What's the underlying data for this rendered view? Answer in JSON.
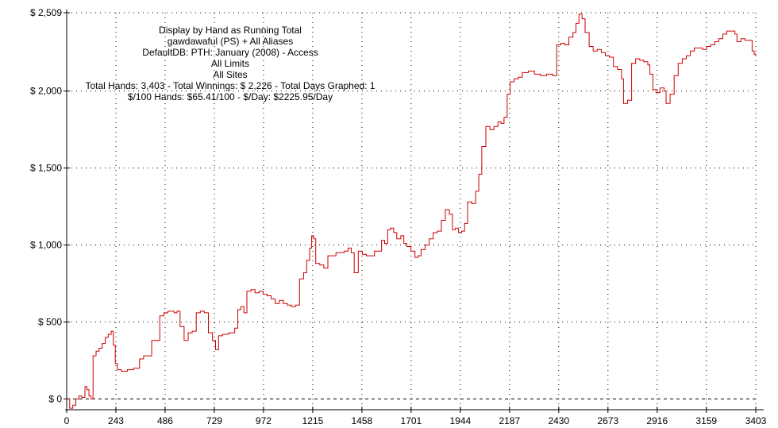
{
  "chart_data": {
    "type": "line",
    "info_lines": [
      "Display by Hand as Running Total",
      "gawdawaful (PS) + All Aliases",
      "DefaultDB: PTH: January (2008) - Access",
      "All Limits",
      "All Sites",
      "Total Hands: 3,403 - Total Winnings: $ 2,226 - Total Days Graphed: 1",
      "$/100 Hands: $65.41/100 - $/Day: $2225.95/Day"
    ],
    "x_ticks": [
      0,
      243,
      486,
      729,
      972,
      1215,
      1458,
      1701,
      1944,
      2187,
      2430,
      2673,
      2916,
      3159,
      3403
    ],
    "y_ticks": [
      {
        "value": 0,
        "label": "$ 0"
      },
      {
        "value": 500,
        "label": "$ 500"
      },
      {
        "value": 1000,
        "label": "$ 1,000"
      },
      {
        "value": 1500,
        "label": "$ 1,500"
      },
      {
        "value": 2000,
        "label": "$ 2,000"
      },
      {
        "value": 2509,
        "label": "$ 2,509"
      }
    ],
    "xlim": [
      0,
      3403
    ],
    "ylim": [
      -70,
      2509
    ],
    "grid": true,
    "line_color": "#cc0000",
    "series": [
      {
        "points": [
          [
            0,
            0
          ],
          [
            15,
            -60
          ],
          [
            30,
            -40
          ],
          [
            45,
            0
          ],
          [
            60,
            20
          ],
          [
            75,
            10
          ],
          [
            90,
            80
          ],
          [
            100,
            60
          ],
          [
            110,
            20
          ],
          [
            120,
            0
          ],
          [
            130,
            280
          ],
          [
            145,
            310
          ],
          [
            160,
            330
          ],
          [
            175,
            360
          ],
          [
            190,
            400
          ],
          [
            205,
            420
          ],
          [
            220,
            440
          ],
          [
            230,
            350
          ],
          [
            240,
            230
          ],
          [
            250,
            190
          ],
          [
            270,
            180
          ],
          [
            300,
            190
          ],
          [
            330,
            200
          ],
          [
            360,
            260
          ],
          [
            380,
            280
          ],
          [
            400,
            280
          ],
          [
            420,
            380
          ],
          [
            440,
            380
          ],
          [
            460,
            540
          ],
          [
            480,
            560
          ],
          [
            500,
            570
          ],
          [
            530,
            560
          ],
          [
            545,
            570
          ],
          [
            560,
            470
          ],
          [
            580,
            380
          ],
          [
            600,
            430
          ],
          [
            620,
            440
          ],
          [
            640,
            560
          ],
          [
            660,
            570
          ],
          [
            680,
            560
          ],
          [
            700,
            430
          ],
          [
            720,
            380
          ],
          [
            735,
            320
          ],
          [
            750,
            410
          ],
          [
            770,
            420
          ],
          [
            800,
            430
          ],
          [
            830,
            460
          ],
          [
            845,
            580
          ],
          [
            860,
            600
          ],
          [
            875,
            560
          ],
          [
            890,
            700
          ],
          [
            910,
            710
          ],
          [
            930,
            690
          ],
          [
            950,
            700
          ],
          [
            970,
            680
          ],
          [
            990,
            670
          ],
          [
            1010,
            650
          ],
          [
            1030,
            620
          ],
          [
            1050,
            640
          ],
          [
            1070,
            620
          ],
          [
            1090,
            610
          ],
          [
            1110,
            600
          ],
          [
            1130,
            610
          ],
          [
            1150,
            780
          ],
          [
            1170,
            820
          ],
          [
            1185,
            900
          ],
          [
            1200,
            980
          ],
          [
            1210,
            1060
          ],
          [
            1220,
            1040
          ],
          [
            1230,
            880
          ],
          [
            1250,
            870
          ],
          [
            1270,
            850
          ],
          [
            1290,
            930
          ],
          [
            1310,
            930
          ],
          [
            1330,
            950
          ],
          [
            1350,
            950
          ],
          [
            1370,
            960
          ],
          [
            1390,
            980
          ],
          [
            1405,
            950
          ],
          [
            1420,
            820
          ],
          [
            1440,
            960
          ],
          [
            1460,
            940
          ],
          [
            1480,
            930
          ],
          [
            1500,
            930
          ],
          [
            1520,
            960
          ],
          [
            1540,
            960
          ],
          [
            1555,
            1030
          ],
          [
            1570,
            1010
          ],
          [
            1585,
            1100
          ],
          [
            1600,
            1110
          ],
          [
            1615,
            1080
          ],
          [
            1630,
            1040
          ],
          [
            1650,
            1060
          ],
          [
            1665,
            1010
          ],
          [
            1680,
            990
          ],
          [
            1700,
            960
          ],
          [
            1720,
            920
          ],
          [
            1735,
            930
          ],
          [
            1750,
            970
          ],
          [
            1770,
            1000
          ],
          [
            1790,
            1040
          ],
          [
            1810,
            1080
          ],
          [
            1830,
            1090
          ],
          [
            1850,
            1160
          ],
          [
            1870,
            1230
          ],
          [
            1890,
            1200
          ],
          [
            1905,
            1100
          ],
          [
            1920,
            1110
          ],
          [
            1935,
            1080
          ],
          [
            1950,
            1090
          ],
          [
            1965,
            1140
          ],
          [
            1980,
            1280
          ],
          [
            2000,
            1270
          ],
          [
            2020,
            1350
          ],
          [
            2035,
            1460
          ],
          [
            2050,
            1640
          ],
          [
            2070,
            1770
          ],
          [
            2090,
            1750
          ],
          [
            2110,
            1770
          ],
          [
            2130,
            1800
          ],
          [
            2145,
            1790
          ],
          [
            2160,
            1830
          ],
          [
            2175,
            1980
          ],
          [
            2190,
            2060
          ],
          [
            2210,
            2080
          ],
          [
            2230,
            2090
          ],
          [
            2250,
            2120
          ],
          [
            2280,
            2130
          ],
          [
            2310,
            2110
          ],
          [
            2340,
            2100
          ],
          [
            2370,
            2110
          ],
          [
            2400,
            2100
          ],
          [
            2420,
            2300
          ],
          [
            2440,
            2310
          ],
          [
            2460,
            2300
          ],
          [
            2480,
            2350
          ],
          [
            2500,
            2380
          ],
          [
            2515,
            2440
          ],
          [
            2530,
            2500
          ],
          [
            2545,
            2470
          ],
          [
            2560,
            2380
          ],
          [
            2580,
            2290
          ],
          [
            2600,
            2260
          ],
          [
            2620,
            2270
          ],
          [
            2640,
            2250
          ],
          [
            2660,
            2230
          ],
          [
            2680,
            2220
          ],
          [
            2700,
            2160
          ],
          [
            2720,
            2140
          ],
          [
            2740,
            2080
          ],
          [
            2750,
            1920
          ],
          [
            2770,
            1940
          ],
          [
            2790,
            2180
          ],
          [
            2810,
            2210
          ],
          [
            2830,
            2200
          ],
          [
            2850,
            2190
          ],
          [
            2870,
            2170
          ],
          [
            2880,
            2110
          ],
          [
            2895,
            2010
          ],
          [
            2910,
            1990
          ],
          [
            2930,
            2020
          ],
          [
            2950,
            2000
          ],
          [
            2960,
            1920
          ],
          [
            2980,
            1980
          ],
          [
            3000,
            2100
          ],
          [
            3020,
            2180
          ],
          [
            3040,
            2210
          ],
          [
            3060,
            2230
          ],
          [
            3080,
            2260
          ],
          [
            3100,
            2280
          ],
          [
            3120,
            2280
          ],
          [
            3140,
            2270
          ],
          [
            3160,
            2290
          ],
          [
            3180,
            2300
          ],
          [
            3200,
            2320
          ],
          [
            3220,
            2340
          ],
          [
            3240,
            2370
          ],
          [
            3260,
            2390
          ],
          [
            3280,
            2390
          ],
          [
            3300,
            2370
          ],
          [
            3310,
            2320
          ],
          [
            3330,
            2340
          ],
          [
            3350,
            2330
          ],
          [
            3370,
            2330
          ],
          [
            3385,
            2260
          ],
          [
            3395,
            2240
          ],
          [
            3403,
            2226
          ]
        ]
      }
    ]
  }
}
